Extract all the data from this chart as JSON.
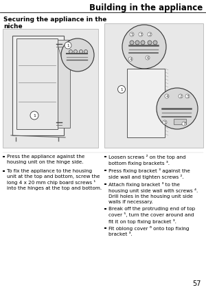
{
  "title": "Building in the appliance",
  "section_title": "Securing the appliance in the\nniche",
  "bg_color": "#ffffff",
  "title_color": "#000000",
  "body_font_size": 5.2,
  "title_font_size": 8.5,
  "section_font_size": 6.5,
  "left_bullets": [
    "Press the appliance against the\nhousing unit on the hinge side.",
    "To fix the appliance to the housing\nunit at the top and bottom, screw the\nlong 4 x 20 mm chip board screws ¹\ninto the hinges at the top and bottom."
  ],
  "right_bullets": [
    "Loosen screws ² on the top and\nbottom fixing brackets ³.",
    "Press fixing bracket ³ against the\nside wall and tighten screws ².",
    "Attach fixing bracket ³ to the\nhousing unit side wall with screws ⁴.\nDrill holes in the housing unit side\nwalls if necessary.",
    "Break off the protruding end of top\ncover ⁵, turn the cover around and\nfit it on top fixing bracket ³.",
    "Fit oblong cover ⁶ onto top fixing\nbracket ³."
  ],
  "page_number": "57",
  "panel_bg": "#e8e8e8",
  "panel_edge": "#aaaaaa"
}
